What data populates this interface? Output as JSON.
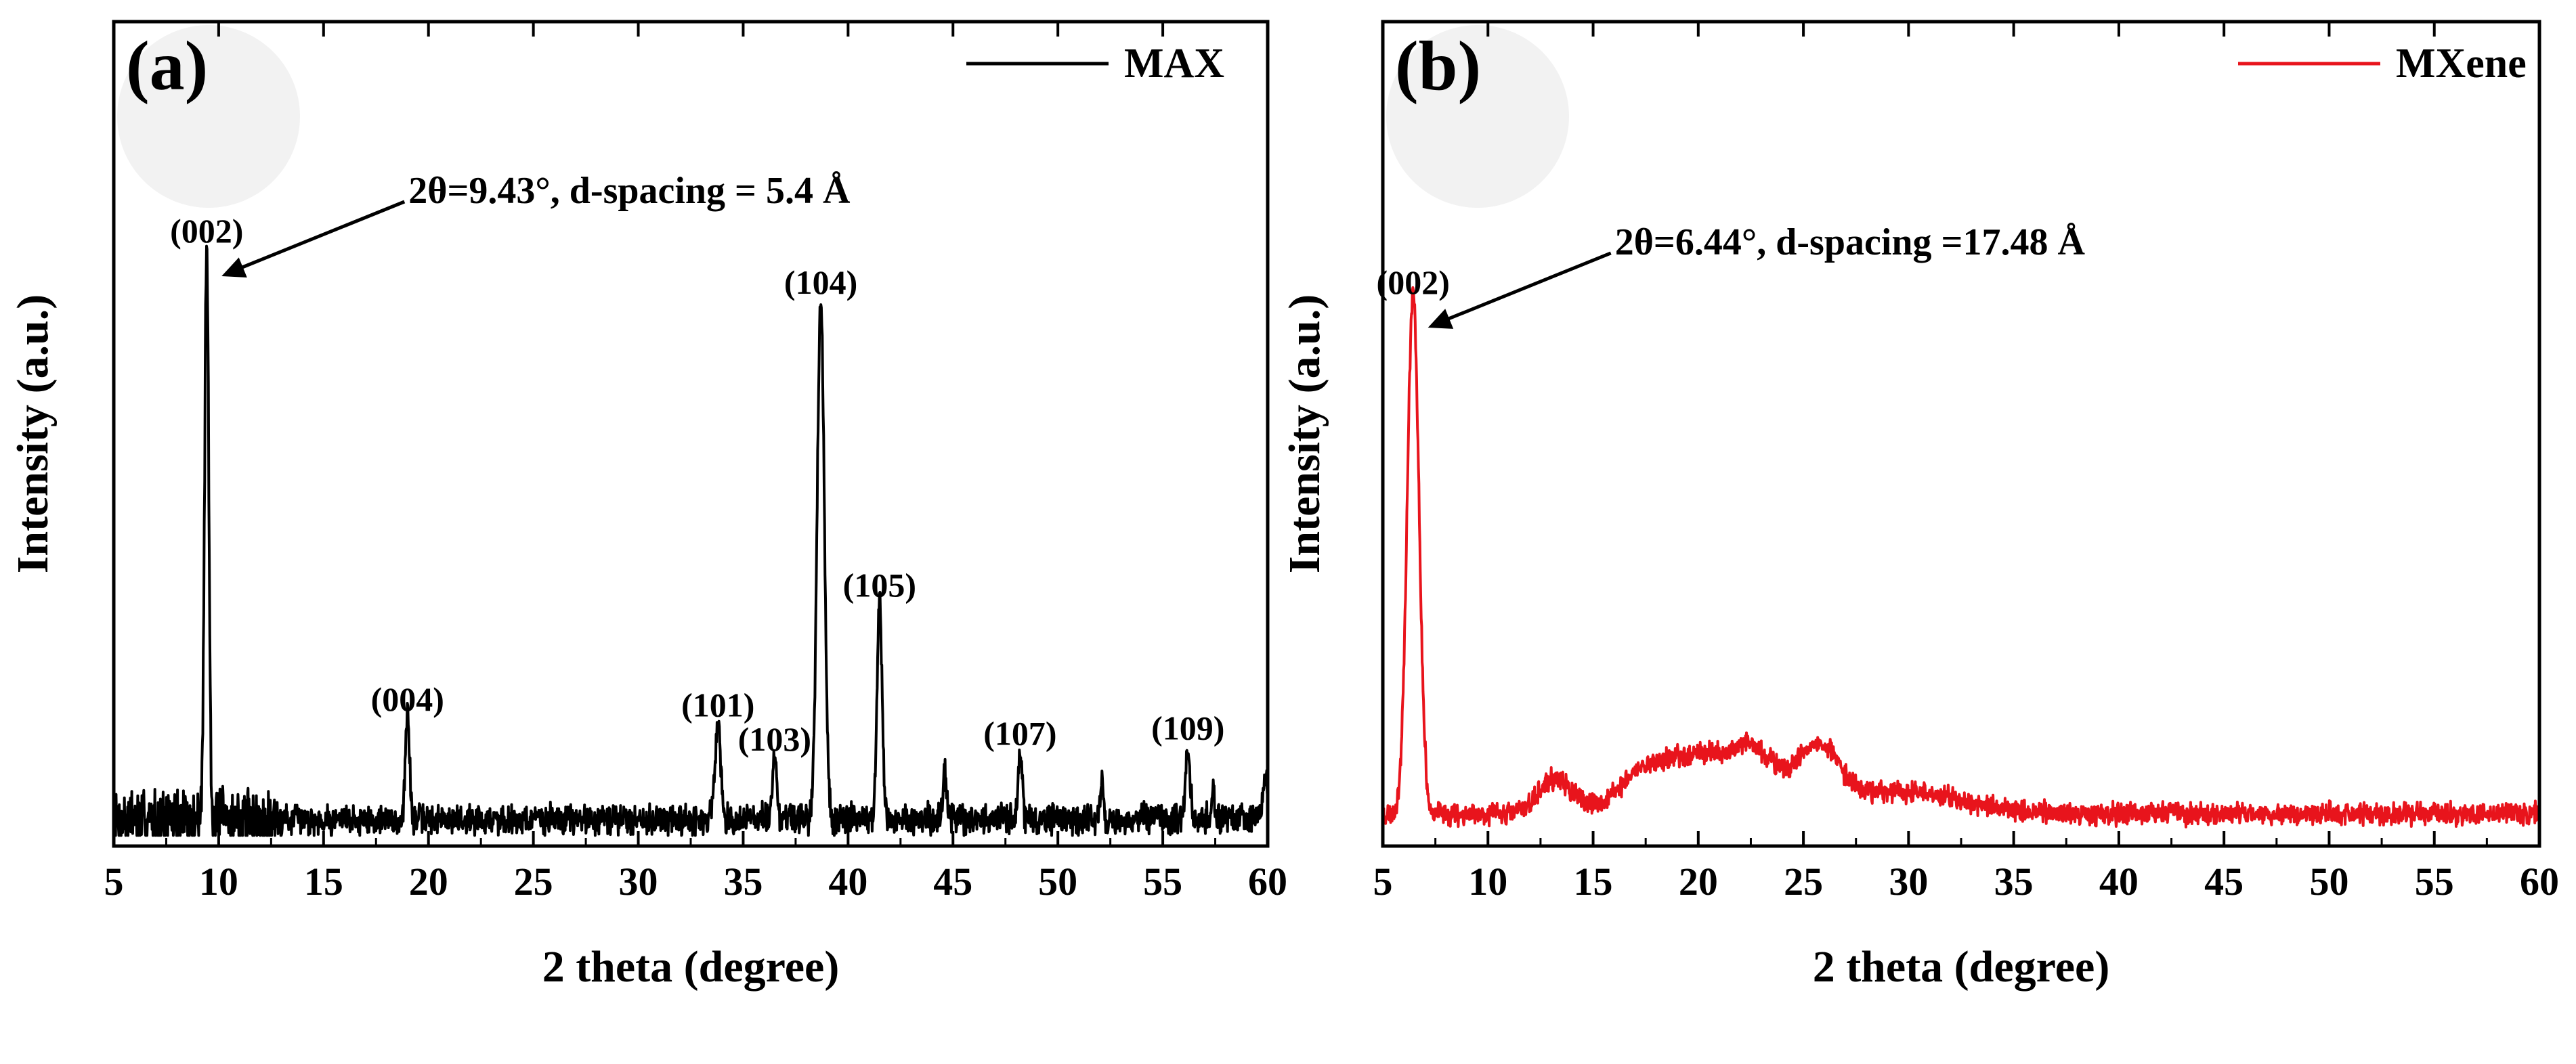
{
  "chart_data": [
    {
      "type": "line",
      "panel": "(a)",
      "legend": "MAX",
      "color": "#000000",
      "xlabel": "2 theta (degree)",
      "ylabel": "Intensity (a.u.)",
      "xlim": [
        5,
        60
      ],
      "ylim": [
        0,
        100
      ],
      "x_ticks": [
        "5",
        "10",
        "15",
        "20",
        "25",
        "30",
        "35",
        "40",
        "45",
        "50",
        "55",
        "60"
      ],
      "baseline": 3,
      "noise": 2.2,
      "noise_seed": 7,
      "low_angle_noise": {
        "from": 5,
        "to": 13,
        "amp": 4.5
      },
      "peaks": [
        {
          "x": 9.43,
          "y": 100,
          "w": 0.1
        },
        {
          "x": 19.0,
          "y": 18,
          "w": 0.1
        },
        {
          "x": 33.8,
          "y": 17,
          "w": 0.13
        },
        {
          "x": 36.5,
          "y": 11,
          "w": 0.1
        },
        {
          "x": 38.7,
          "y": 91,
          "w": 0.17
        },
        {
          "x": 41.5,
          "y": 38,
          "w": 0.12
        },
        {
          "x": 44.6,
          "y": 8,
          "w": 0.08
        },
        {
          "x": 48.2,
          "y": 12,
          "w": 0.1
        },
        {
          "x": 52.1,
          "y": 6,
          "w": 0.07
        },
        {
          "x": 56.2,
          "y": 13,
          "w": 0.1
        },
        {
          "x": 57.4,
          "y": 5,
          "w": 0.06
        },
        {
          "x": 59.9,
          "y": 9,
          "w": 0.1
        }
      ],
      "peak_labels": [
        {
          "text": "(002)",
          "x": 9.43,
          "y": 100
        },
        {
          "text": "(004)",
          "x": 19.0,
          "y": 18
        },
        {
          "text": "(101)",
          "x": 33.8,
          "y": 17
        },
        {
          "text": "(103)",
          "x": 36.5,
          "y": 11
        },
        {
          "text": "(104)",
          "x": 38.7,
          "y": 91
        },
        {
          "text": "(105)",
          "x": 41.5,
          "y": 38
        },
        {
          "text": "(107)",
          "x": 48.2,
          "y": 12
        },
        {
          "text": "(109)",
          "x": 56.2,
          "y": 13
        }
      ],
      "annotation": {
        "text": "2θ=9.43°, d-spacing = 5.4 Å",
        "x": 9.43,
        "y": 100
      }
    },
    {
      "type": "line",
      "panel": "(b)",
      "legend": "MXene",
      "color": "#e8141c",
      "xlabel": "2 theta (degree)",
      "ylabel": "Intensity (a.u.)",
      "xlim": [
        5,
        60
      ],
      "ylim": [
        0,
        100
      ],
      "x_ticks": [
        "5",
        "10",
        "15",
        "20",
        "25",
        "30",
        "35",
        "40",
        "45",
        "50",
        "55",
        "60"
      ],
      "baseline": 4,
      "noise": 1.6,
      "noise_seed": 23,
      "low_angle_noise": {
        "from": 5,
        "to": 5,
        "amp": 0
      },
      "peaks": [
        {
          "x": 6.44,
          "y": 91,
          "w": 0.28
        },
        {
          "x": 13.2,
          "y": 6,
          "w": 0.8
        },
        {
          "x": 17.6,
          "y": 8,
          "w": 1.3
        },
        {
          "x": 20.0,
          "y": 8,
          "w": 1.1
        },
        {
          "x": 22.5,
          "y": 11,
          "w": 1.2
        },
        {
          "x": 25.7,
          "y": 10,
          "w": 1.0
        },
        {
          "x": 29.5,
          "y": 4,
          "w": 3.0
        }
      ],
      "peak_labels": [
        {
          "text": "(002)",
          "x": 6.44,
          "y": 91
        }
      ],
      "annotation": {
        "text": "2θ=6.44°, d-spacing =17.48  Å",
        "x": 6.44,
        "y": 91
      }
    }
  ]
}
